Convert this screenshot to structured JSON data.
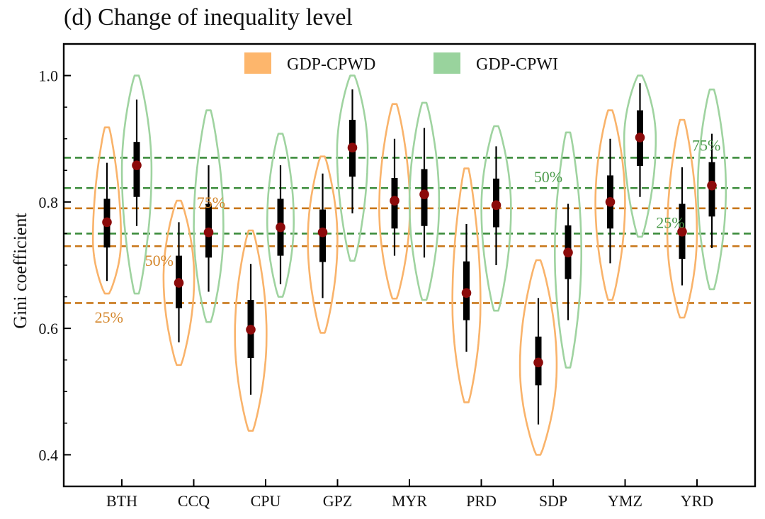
{
  "chart_data": {
    "type": "violin",
    "title": "(d) Change of inequality level",
    "xlabel": "",
    "ylabel": "Gini coefficient",
    "ylim": [
      0.35,
      1.05
    ],
    "yticks": [
      0.4,
      0.6,
      0.8,
      1.0
    ],
    "ytick_labels": [
      "0.4",
      "0.6",
      "0.8",
      "1.0"
    ],
    "categories": [
      "BTH",
      "CCQ",
      "CPU",
      "GPZ",
      "MYR",
      "PRD",
      "SDP",
      "YMZ",
      "YRD"
    ],
    "legend": {
      "position": "top-center",
      "entries": [
        {
          "label": "GDP-CPWD",
          "color": "#fdb66c"
        },
        {
          "label": "GDP-CPWI",
          "color": "#99d39d"
        }
      ]
    },
    "series": [
      {
        "name": "GDP-CPWD",
        "color": "#f9b36b",
        "stats": [
          {
            "min": 0.655,
            "max": 0.918,
            "q1": 0.728,
            "median": 0.768,
            "q3": 0.805,
            "wlo": 0.675,
            "whi": 0.862,
            "width": 0.55,
            "peak": 0.74
          },
          {
            "min": 0.542,
            "max": 0.802,
            "q1": 0.632,
            "median": 0.672,
            "q3": 0.715,
            "wlo": 0.578,
            "whi": 0.768,
            "width": 0.6,
            "peak": 0.68
          },
          {
            "min": 0.438,
            "max": 0.755,
            "q1": 0.553,
            "median": 0.598,
            "q3": 0.645,
            "wlo": 0.495,
            "whi": 0.702,
            "width": 0.62,
            "peak": 0.59
          },
          {
            "min": 0.593,
            "max": 0.872,
            "q1": 0.705,
            "median": 0.752,
            "q3": 0.788,
            "wlo": 0.648,
            "whi": 0.845,
            "width": 0.58,
            "peak": 0.74
          },
          {
            "min": 0.647,
            "max": 0.955,
            "q1": 0.758,
            "median": 0.802,
            "q3": 0.838,
            "wlo": 0.715,
            "whi": 0.9,
            "width": 0.6,
            "peak": 0.79
          },
          {
            "min": 0.483,
            "max": 0.853,
            "q1": 0.613,
            "median": 0.656,
            "q3": 0.706,
            "wlo": 0.563,
            "whi": 0.765,
            "width": 0.55,
            "peak": 0.64
          },
          {
            "min": 0.4,
            "max": 0.708,
            "q1": 0.51,
            "median": 0.546,
            "q3": 0.587,
            "wlo": 0.448,
            "whi": 0.648,
            "width": 0.72,
            "peak": 0.54
          },
          {
            "min": 0.645,
            "max": 0.945,
            "q1": 0.758,
            "median": 0.8,
            "q3": 0.842,
            "wlo": 0.703,
            "whi": 0.9,
            "width": 0.58,
            "peak": 0.8
          },
          {
            "min": 0.617,
            "max": 0.93,
            "q1": 0.71,
            "median": 0.753,
            "q3": 0.797,
            "wlo": 0.668,
            "whi": 0.855,
            "width": 0.58,
            "peak": 0.75
          }
        ]
      },
      {
        "name": "GDP-CPWI",
        "color": "#9fd3a0",
        "stats": [
          {
            "min": 0.655,
            "max": 1.0,
            "q1": 0.808,
            "median": 0.858,
            "q3": 0.895,
            "wlo": 0.762,
            "whi": 0.962,
            "width": 0.58,
            "peak": 0.85
          },
          {
            "min": 0.61,
            "max": 0.945,
            "q1": 0.712,
            "median": 0.752,
            "q3": 0.797,
            "wlo": 0.658,
            "whi": 0.858,
            "width": 0.58,
            "peak": 0.76
          },
          {
            "min": 0.65,
            "max": 0.908,
            "q1": 0.715,
            "median": 0.76,
            "q3": 0.805,
            "wlo": 0.67,
            "whi": 0.858,
            "width": 0.52,
            "peak": 0.77
          },
          {
            "min": 0.707,
            "max": 1.0,
            "q1": 0.84,
            "median": 0.886,
            "q3": 0.93,
            "wlo": 0.782,
            "whi": 0.978,
            "width": 0.6,
            "peak": 0.88
          },
          {
            "min": 0.645,
            "max": 0.957,
            "q1": 0.762,
            "median": 0.812,
            "q3": 0.852,
            "wlo": 0.712,
            "whi": 0.917,
            "width": 0.58,
            "peak": 0.8
          },
          {
            "min": 0.628,
            "max": 0.92,
            "q1": 0.76,
            "median": 0.795,
            "q3": 0.837,
            "wlo": 0.7,
            "whi": 0.888,
            "width": 0.58,
            "peak": 0.79
          },
          {
            "min": 0.538,
            "max": 0.91,
            "q1": 0.678,
            "median": 0.72,
            "q3": 0.763,
            "wlo": 0.613,
            "whi": 0.797,
            "width": 0.52,
            "peak": 0.72
          },
          {
            "min": 0.745,
            "max": 1.0,
            "q1": 0.857,
            "median": 0.902,
            "q3": 0.945,
            "wlo": 0.808,
            "whi": 0.988,
            "width": 0.62,
            "peak": 0.9
          },
          {
            "min": 0.662,
            "max": 0.978,
            "q1": 0.777,
            "median": 0.826,
            "q3": 0.863,
            "wlo": 0.727,
            "whi": 0.908,
            "width": 0.55,
            "peak": 0.82
          }
        ]
      }
    ],
    "reference_lines": [
      {
        "group": "GDP-CPWD",
        "value": 0.64,
        "label": "25%",
        "color": "#c8771a",
        "label_color": "#d4862b",
        "label_x_cat": -0.18,
        "label_y": 0.618
      },
      {
        "group": "GDP-CPWD",
        "value": 0.73,
        "label": "50%",
        "color": "#c8771a",
        "label_color": "#d4862b",
        "label_x_cat": 0.52,
        "label_y": 0.708
      },
      {
        "group": "GDP-CPWD",
        "value": 0.79,
        "label": "75%",
        "color": "#c8771a",
        "label_color": "#d4862b",
        "label_x_cat": 1.24,
        "label_y": 0.8
      },
      {
        "group": "GDP-CPWI",
        "value": 0.75,
        "label": "25%",
        "color": "#3c8c3c",
        "label_color": "#4a9a4a",
        "label_x_cat": 7.63,
        "label_y": 0.768
      },
      {
        "group": "GDP-CPWI",
        "value": 0.822,
        "label": "50%",
        "color": "#3c8c3c",
        "label_color": "#4a9a4a",
        "label_x_cat": 5.93,
        "label_y": 0.84
      },
      {
        "group": "GDP-CPWI",
        "value": 0.87,
        "label": "75%",
        "color": "#3c8c3c",
        "label_color": "#4a9a4a",
        "label_x_cat": 8.13,
        "label_y": 0.89
      }
    ],
    "median_marker_color": "#8b0a0a"
  }
}
